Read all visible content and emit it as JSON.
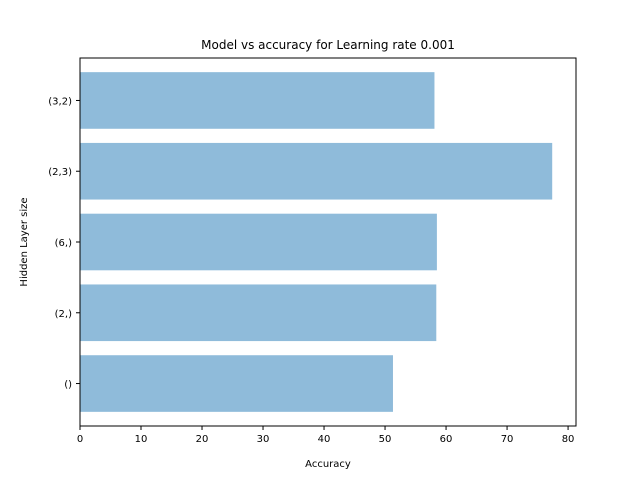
{
  "chart_data": {
    "type": "bar",
    "orientation": "horizontal",
    "title": "Model vs accuracy for Learning rate 0.001",
    "xlabel": "Accuracy",
    "ylabel": "Hidden Layer size",
    "categories": [
      "()",
      "(2,)",
      "(6,)",
      "(2,3)",
      "(3,2)"
    ],
    "values": [
      51.3,
      58.4,
      58.5,
      77.4,
      58.1
    ],
    "xlim": [
      0,
      81.3
    ],
    "xticks": [
      0,
      10,
      20,
      30,
      40,
      50,
      60,
      70,
      80
    ],
    "bar_color": "#8fbbda",
    "grid": false,
    "legend": "none"
  }
}
